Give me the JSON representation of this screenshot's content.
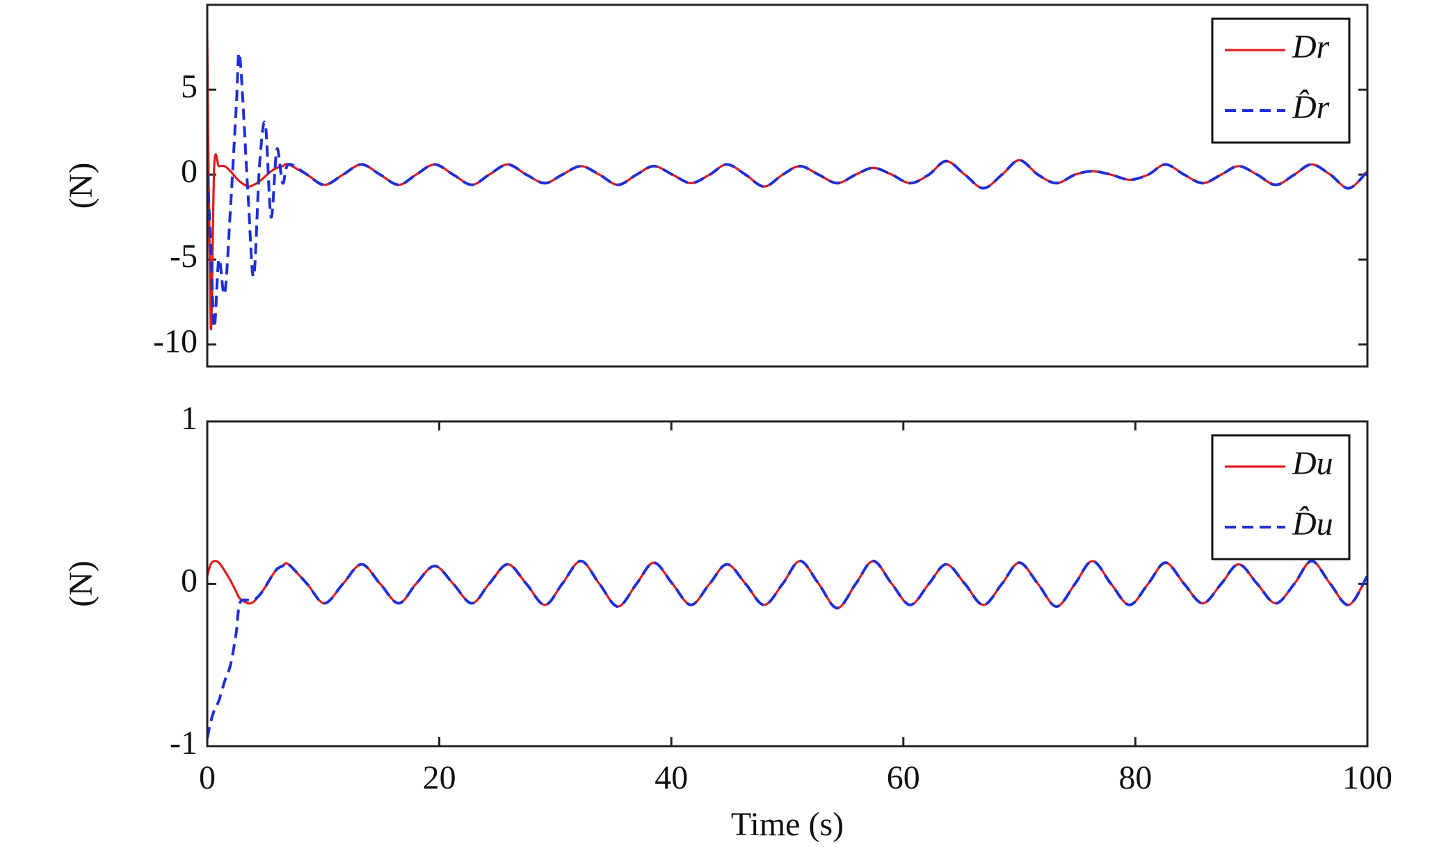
{
  "chart_data": [
    {
      "type": "line",
      "ylabel": "(N)",
      "xlim": [
        0,
        100
      ],
      "ylim": [
        -11.3,
        10
      ],
      "yticks": [
        -10,
        -5,
        0,
        5
      ],
      "legend": "upper right",
      "x": [
        0,
        0.3,
        0.6,
        1,
        1.5,
        2,
        2.5,
        2.8,
        3.5,
        4,
        4.5,
        5,
        5.5,
        6,
        6.5,
        7,
        8.6,
        10.1,
        11.7,
        13.3,
        14.9,
        16.5,
        18,
        19.6,
        21.2,
        22.8,
        24.3,
        25.9,
        27.5,
        29.1,
        30.6,
        32.2,
        33.8,
        35.4,
        37,
        38.5,
        40.1,
        41.7,
        43.3,
        44.8,
        46.4,
        48,
        49.6,
        51.1,
        52.7,
        54.3,
        55.9,
        57.4,
        59,
        60.6,
        62.2,
        63.7,
        65.3,
        66.9,
        68.5,
        70,
        71.6,
        73.2,
        74.8,
        76.3,
        77.9,
        79.5,
        81.1,
        82.6,
        84.2,
        85.8,
        87.4,
        88.9,
        90.5,
        92.1,
        93.7,
        95.2,
        96.8,
        98.4,
        100
      ],
      "series": [
        {
          "name": "Dr",
          "color": "#e31a1c",
          "dash": false,
          "values": [
            8,
            -9,
            0.5,
            0.5,
            0.5,
            0.2,
            -0.2,
            -0.4,
            -0.7,
            -0.6,
            -0.4,
            -0.1,
            0.2,
            0.4,
            0.5,
            0.6,
            0,
            -0.6,
            0,
            0.6,
            0,
            -0.6,
            0,
            0.6,
            0,
            -0.6,
            0,
            0.6,
            0,
            -0.5,
            0,
            0.5,
            0,
            -0.6,
            0,
            0.5,
            0,
            -0.5,
            0,
            0.6,
            0,
            -0.7,
            0,
            0.5,
            0,
            -0.5,
            0,
            0.4,
            0,
            -0.5,
            0,
            0.8,
            0,
            -0.8,
            0,
            0.85,
            0,
            -0.5,
            0,
            0.2,
            0,
            -0.3,
            0,
            0.6,
            0,
            -0.5,
            0,
            0.5,
            0,
            -0.6,
            0,
            0.6,
            0,
            -0.8,
            0.2
          ]
        },
        {
          "name": "D̂r",
          "color": "#1f2fd6",
          "dash": true,
          "values": [
            0,
            -4,
            -9,
            -5,
            -7,
            -2,
            4,
            7,
            -1,
            -6,
            0.5,
            3,
            -2.5,
            1.5,
            -0.5,
            0.6,
            0,
            -0.6,
            0,
            0.6,
            0,
            -0.6,
            0,
            0.6,
            0,
            -0.6,
            0,
            0.6,
            0,
            -0.5,
            0,
            0.5,
            0,
            -0.6,
            0,
            0.5,
            0,
            -0.5,
            0,
            0.6,
            0,
            -0.7,
            0,
            0.5,
            0,
            -0.5,
            0,
            0.4,
            0,
            -0.5,
            0,
            0.8,
            0,
            -0.8,
            0,
            0.85,
            0,
            -0.5,
            0,
            0.2,
            0,
            -0.3,
            0,
            0.6,
            0,
            -0.5,
            0,
            0.5,
            0,
            -0.6,
            0,
            0.6,
            0,
            -0.8,
            0.2
          ]
        }
      ]
    },
    {
      "type": "line",
      "xlabel": "Time (s)",
      "ylabel": "(N)",
      "xlim": [
        0,
        100
      ],
      "ylim": [
        -1,
        1
      ],
      "xticks": [
        0,
        20,
        40,
        60,
        80,
        100
      ],
      "yticks": [
        -1,
        0,
        1
      ],
      "legend": "upper right",
      "x": [
        0,
        0.3,
        0.6,
        1,
        1.5,
        2,
        2.5,
        2.8,
        3.5,
        4,
        4.5,
        5,
        5.5,
        6,
        6.5,
        7,
        8.6,
        10.1,
        11.7,
        13.3,
        14.9,
        16.5,
        18,
        19.6,
        21.2,
        22.8,
        24.3,
        25.9,
        27.5,
        29.1,
        30.6,
        32.2,
        33.8,
        35.4,
        37,
        38.5,
        40.1,
        41.7,
        43.3,
        44.8,
        46.4,
        48,
        49.6,
        51.1,
        52.7,
        54.3,
        55.9,
        57.4,
        59,
        60.6,
        62.2,
        63.7,
        65.3,
        66.9,
        68.5,
        70,
        71.6,
        73.2,
        74.8,
        76.3,
        77.9,
        79.5,
        81.1,
        82.6,
        84.2,
        85.8,
        87.4,
        88.9,
        90.5,
        92.1,
        93.7,
        95.2,
        96.8,
        98.4,
        100
      ],
      "series": [
        {
          "name": "Du",
          "color": "#e31a1c",
          "dash": false,
          "values": [
            0.05,
            0.12,
            0.14,
            0.13,
            0.08,
            0.02,
            -0.05,
            -0.09,
            -0.12,
            -0.11,
            -0.07,
            -0.02,
            0.04,
            0.09,
            0.11,
            0.12,
            0,
            -0.12,
            0,
            0.12,
            0,
            -0.12,
            0,
            0.11,
            0,
            -0.12,
            0,
            0.12,
            0,
            -0.13,
            0,
            0.14,
            0,
            -0.14,
            0,
            0.13,
            0,
            -0.13,
            0,
            0.12,
            0,
            -0.13,
            0,
            0.14,
            0,
            -0.15,
            0,
            0.14,
            0,
            -0.13,
            0,
            0.12,
            0,
            -0.13,
            0,
            0.13,
            0,
            -0.14,
            0,
            0.14,
            0,
            -0.13,
            0,
            0.13,
            0,
            -0.12,
            0,
            0.12,
            0,
            -0.12,
            0,
            0.14,
            0,
            -0.13,
            0.05
          ]
        },
        {
          "name": "D̂u",
          "color": "#1f2fd6",
          "dash": true,
          "values": [
            -0.95,
            -0.85,
            -0.78,
            -0.72,
            -0.6,
            -0.5,
            -0.3,
            -0.12,
            -0.1,
            -0.1,
            -0.07,
            -0.02,
            0.04,
            0.09,
            0.11,
            0.12,
            0,
            -0.12,
            0,
            0.12,
            0,
            -0.12,
            0,
            0.11,
            0,
            -0.12,
            0,
            0.12,
            0,
            -0.13,
            0,
            0.14,
            0,
            -0.14,
            0,
            0.13,
            0,
            -0.13,
            0,
            0.12,
            0,
            -0.13,
            0,
            0.14,
            0,
            -0.15,
            0,
            0.14,
            0,
            -0.13,
            0,
            0.12,
            0,
            -0.13,
            0,
            0.13,
            0,
            -0.14,
            0,
            0.14,
            0,
            -0.13,
            0,
            0.13,
            0,
            -0.12,
            0,
            0.12,
            0,
            -0.12,
            0,
            0.14,
            0,
            -0.13,
            0.05
          ]
        }
      ]
    }
  ]
}
